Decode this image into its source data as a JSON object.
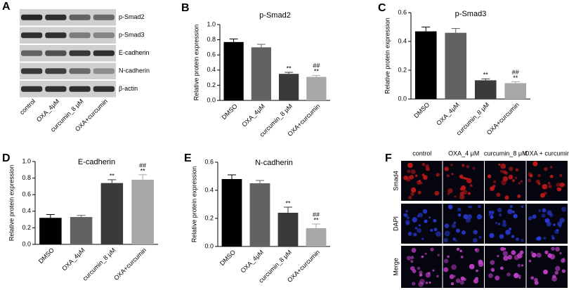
{
  "blot": {
    "panel_label": "A",
    "proteins": [
      "p-Smad2",
      "p-Smad3",
      "E-cadherin",
      "N-cadherin",
      "β-actin"
    ],
    "lanes": [
      "control",
      "OXA_4μM",
      "curcumin_8 μM",
      "OXA+curcumin"
    ]
  },
  "chart_data": [
    {
      "type": "bar",
      "panel_label": "B",
      "title": "p-Smad2",
      "y_label": "Relative protein expression",
      "categories": [
        "DMSO",
        "OXA_4μM",
        "curcumin_8 μM",
        "OXA+curcumin"
      ],
      "values": [
        0.77,
        0.7,
        0.35,
        0.31
      ],
      "errors": [
        0.04,
        0.04,
        0.02,
        0.02
      ],
      "colors": [
        "#000000",
        "#626262",
        "#3a3a3a",
        "#a8a8a8"
      ],
      "annotations": [
        null,
        null,
        [
          "**"
        ],
        [
          "##",
          "**"
        ]
      ],
      "ylim": [
        0,
        1
      ],
      "yticks": [
        {
          "value": 0,
          "label": "0.0"
        },
        0.2,
        0.4,
        0.6,
        0.8,
        {
          "value": 1,
          "label": "1.0"
        }
      ]
    },
    {
      "type": "bar",
      "panel_label": "C",
      "title": "p-Smad3",
      "y_label": "Relative protein expression",
      "categories": [
        "DMSO",
        "OXA_4μM",
        "curcumin_8 μM",
        "OXA+curcumin"
      ],
      "values": [
        0.47,
        0.46,
        0.13,
        0.11
      ],
      "errors": [
        0.03,
        0.03,
        0.01,
        0.01
      ],
      "colors": [
        "#000000",
        "#626262",
        "#3a3a3a",
        "#a8a8a8"
      ],
      "annotations": [
        null,
        null,
        [
          "**"
        ],
        [
          "##",
          "**"
        ]
      ],
      "ylim": [
        0,
        0.6
      ],
      "yticks": [
        {
          "value": 0,
          "label": "0.0"
        },
        0.2,
        0.4,
        0.6
      ]
    },
    {
      "type": "bar",
      "panel_label": "D",
      "title": "E-cadherin",
      "y_label": "Relative protein expression",
      "categories": [
        "DMSO",
        "OXA_4μM",
        "curcumin_8 μM",
        "OXA+curcumin"
      ],
      "values": [
        0.32,
        0.33,
        0.74,
        0.78
      ],
      "errors": [
        0.04,
        0.02,
        0.04,
        0.06
      ],
      "colors": [
        "#000000",
        "#626262",
        "#3a3a3a",
        "#a8a8a8"
      ],
      "annotations": [
        null,
        null,
        [
          "**"
        ],
        [
          "##",
          "**"
        ]
      ],
      "ylim": [
        0,
        1
      ],
      "yticks": [
        {
          "value": 0,
          "label": "0.0"
        },
        0.2,
        0.4,
        0.6,
        0.8,
        {
          "value": 1,
          "label": "1.0"
        }
      ]
    },
    {
      "type": "bar",
      "panel_label": "E",
      "title": "N-cadherin",
      "y_label": "Relative protein expression",
      "categories": [
        "DMSO",
        "OXA_4μM",
        "curcumin_8 μM",
        "OXA+curcumin"
      ],
      "values": [
        0.48,
        0.45,
        0.24,
        0.13
      ],
      "errors": [
        0.03,
        0.02,
        0.04,
        0.03
      ],
      "colors": [
        "#000000",
        "#626262",
        "#3a3a3a",
        "#a8a8a8"
      ],
      "annotations": [
        null,
        null,
        [
          "**"
        ],
        [
          "##",
          "**"
        ]
      ],
      "ylim": [
        0,
        0.6
      ],
      "yticks": [
        {
          "value": 0,
          "label": "0.0"
        },
        0.2,
        0.4,
        0.6
      ]
    }
  ],
  "microscopy": {
    "panel_label": "F",
    "columns": [
      "control",
      "OXA_4 μM",
      "curcumin_8 μM",
      "OXA + curcumin"
    ],
    "rows": [
      "Smad4",
      "DAPI",
      "Merge"
    ]
  }
}
